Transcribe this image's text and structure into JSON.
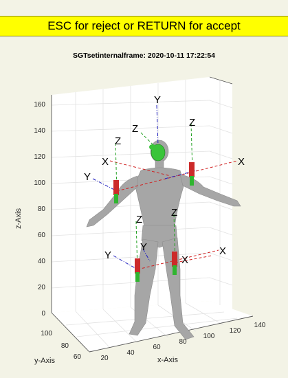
{
  "prompt": {
    "text": "ESC for reject or RETURN for accept"
  },
  "figure": {
    "title": "SGTsetinternalframe: 2020-10-11 17:22:54"
  },
  "axes": {
    "z_label": "z-Axis",
    "y_label": "y-Axis",
    "x_label": "x-Axis",
    "z_ticks": [
      "0",
      "20",
      "40",
      "60",
      "80",
      "100",
      "120",
      "140",
      "160"
    ],
    "y_ticks": [
      "100",
      "80",
      "60"
    ],
    "x_ticks": [
      "20",
      "40",
      "60",
      "80",
      "100",
      "120",
      "140"
    ]
  },
  "frame_labels": {
    "top_y": "Y",
    "head_z": "Z",
    "shoulder_right_z": "Z",
    "shoulder_left_z": "Z",
    "shoulder_left_x": "X",
    "shoulder_right_x": "X",
    "shoulder_y": "Y",
    "hip_left_z": "Z",
    "hip_right_z": "Z",
    "hip_y_left": "Y",
    "hip_y": "Y",
    "hip_x": "X",
    "hip_x2": "X"
  },
  "colors": {
    "prompt_bg": "#ffff00",
    "figure_bg": "#f3f3e6",
    "axes_bg": "#ffffff",
    "body": "#a6a6a6",
    "x_axis": "#d02020",
    "y_axis": "#2020c0",
    "z_axis": "#20a020"
  }
}
